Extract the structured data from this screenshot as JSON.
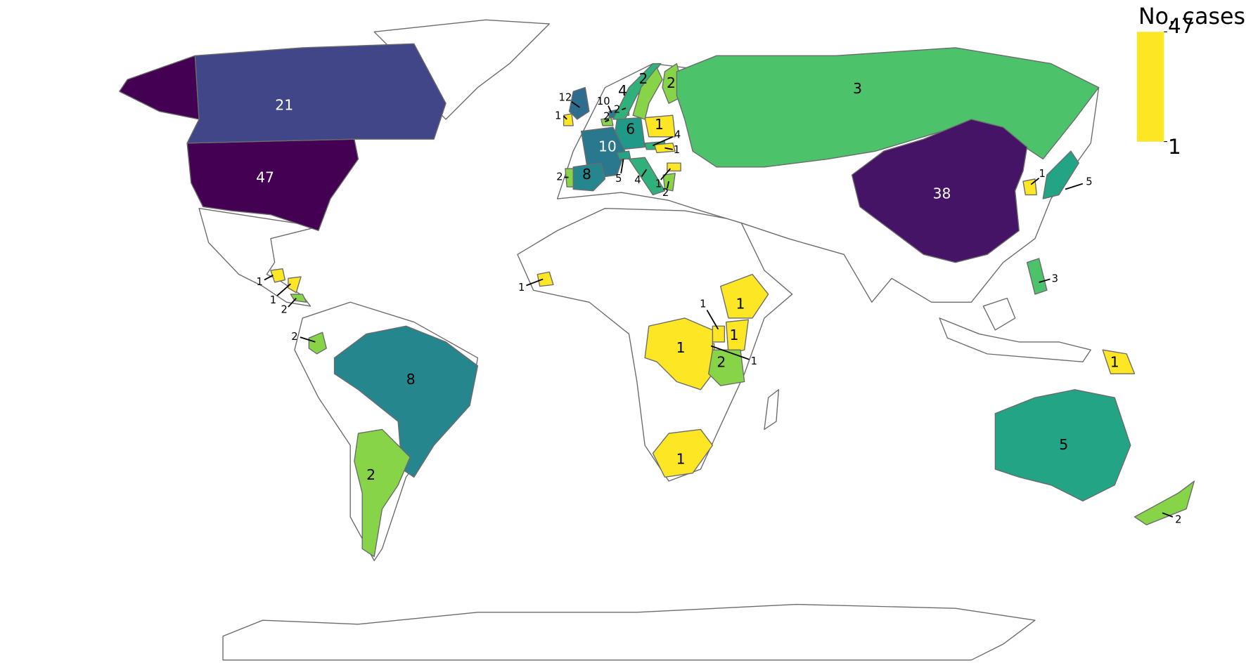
{
  "map": {
    "scale": "log",
    "colorscale": [
      "#fde725",
      "#bddf26",
      "#7ad151",
      "#44bf70",
      "#22a884",
      "#21918c",
      "#2a788e",
      "#355f8d",
      "#414487",
      "#482475",
      "#440154"
    ],
    "legend": {
      "title": "No. cases",
      "ticks": [
        1,
        47
      ]
    },
    "regions": [
      {
        "value": 47
      },
      {
        "value": 21
      },
      {
        "value": 1
      },
      {
        "value": 1
      },
      {
        "value": 2
      },
      {
        "value": 2
      },
      {
        "value": 8
      },
      {
        "value": 2
      },
      {
        "value": 12
      },
      {
        "value": 1
      },
      {
        "value": 10
      },
      {
        "value": 2
      },
      {
        "value": 2
      },
      {
        "value": 6
      },
      {
        "value": 10
      },
      {
        "value": 5
      },
      {
        "value": 8
      },
      {
        "value": 2
      },
      {
        "value": 4
      },
      {
        "value": 1
      },
      {
        "value": 4
      },
      {
        "value": 1
      },
      {
        "value": 1
      },
      {
        "value": 2
      },
      {
        "value": 4
      },
      {
        "value": 2
      },
      {
        "value": 2
      },
      {
        "value": 3
      },
      {
        "value": 1
      },
      {
        "value": 1
      },
      {
        "value": 1
      },
      {
        "value": 1
      },
      {
        "value": 1
      },
      {
        "value": 1
      },
      {
        "value": 2
      },
      {
        "value": 1
      },
      {
        "value": 38
      },
      {
        "value": 1
      },
      {
        "value": 5
      },
      {
        "value": 3
      },
      {
        "value": 1
      },
      {
        "value": 5
      },
      {
        "value": 2
      }
    ]
  }
}
